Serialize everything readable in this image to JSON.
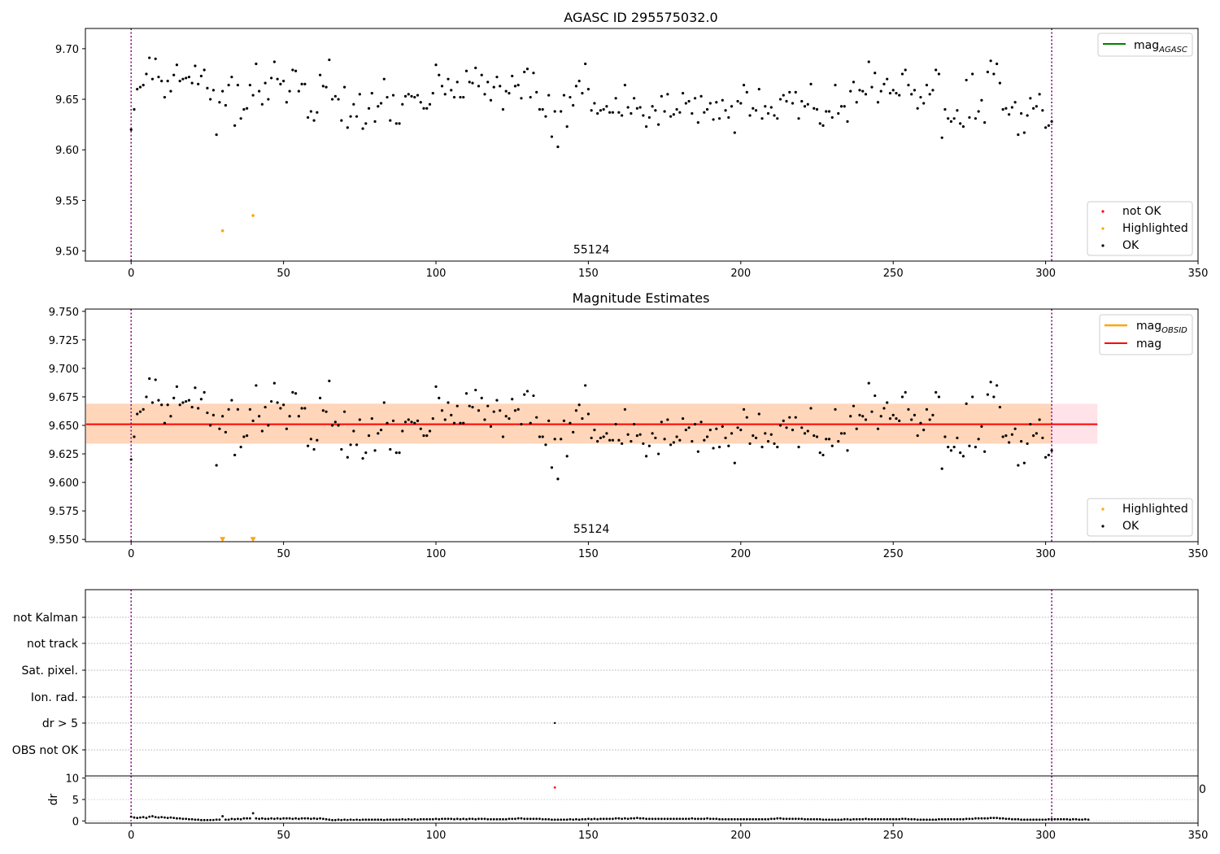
{
  "chart_data": [
    {
      "type": "scatter",
      "title": "AGASC ID 295575032.0",
      "xlim": [
        -15,
        350
      ],
      "ylim": [
        9.49,
        9.72
      ],
      "xticks": [
        0,
        50,
        100,
        150,
        200,
        250,
        300,
        350
      ],
      "yticks": [
        9.5,
        9.55,
        9.6,
        9.65,
        9.7
      ],
      "vlines": [
        0,
        302
      ],
      "annotation": {
        "text": "55124",
        "x": 151,
        "y": 9.5
      },
      "legend_lines": [
        {
          "main": "mag",
          "sub": "AGASC",
          "color": "#008000"
        }
      ],
      "legend_points": [
        {
          "label": "not OK",
          "color": "#ff0000"
        },
        {
          "label": "Highlighted",
          "color": "#ffa500"
        },
        {
          "label": "OK",
          "color": "#000000"
        }
      ],
      "series": [
        {
          "name": "Highlighted",
          "color": "#ffa500",
          "x": [
            30,
            40
          ],
          "y": [
            9.52,
            9.535
          ]
        },
        {
          "name": "OK",
          "color": "#000000",
          "source": "points"
        }
      ]
    },
    {
      "type": "scatter",
      "title": "Magnitude Estimates",
      "xlim": [
        -15,
        350
      ],
      "ylim": [
        9.548,
        9.752
      ],
      "xticks": [
        0,
        50,
        100,
        150,
        200,
        250,
        300,
        350
      ],
      "yticks": [
        9.55,
        9.575,
        9.6,
        9.625,
        9.65,
        9.675,
        9.7,
        9.725,
        9.75
      ],
      "vlines": [
        0,
        302
      ],
      "band": {
        "x0": -15,
        "x1": 317,
        "y0": 9.634,
        "y1": 9.669
      },
      "mag_obsid_band": {
        "x0": -15,
        "x1": 302,
        "y0": 9.634,
        "y1": 9.669
      },
      "mag_line": 9.651,
      "annotation": {
        "text": "55124",
        "x": 151,
        "y": 9.555
      },
      "legend_lines": [
        {
          "main": "mag",
          "sub": "OBSID",
          "color": "#ffa500"
        },
        {
          "main": "mag",
          "sub": "",
          "color": "#ff0000"
        }
      ],
      "legend_points": [
        {
          "label": "Highlighted",
          "color": "#ffa500"
        },
        {
          "label": "OK",
          "color": "#000000"
        }
      ],
      "series": [
        {
          "name": "Highlighted",
          "color": "#ffa500",
          "marker": "triangle-down",
          "x": [
            30,
            40
          ],
          "y": [
            9.55,
            9.55
          ]
        },
        {
          "name": "OK",
          "color": "#000000",
          "source": "points"
        }
      ]
    },
    {
      "type": "scatter",
      "xlim": [
        -15,
        350
      ],
      "categories": [
        "not Kalman",
        "not track",
        "Sat. pixel.",
        "Ion. rad.",
        "dr > 5",
        "OBS not OK"
      ],
      "vlines": [
        0,
        302
      ],
      "flag_points": [
        {
          "x": 139,
          "category": "dr > 5"
        }
      ]
    },
    {
      "type": "scatter",
      "ylabel": "dr",
      "xlim": [
        -15,
        350
      ],
      "ylim": [
        -0.5,
        10.5
      ],
      "yticks": [
        0,
        5,
        10
      ],
      "xticks": [
        0,
        50,
        100,
        150,
        200,
        250,
        300,
        350
      ],
      "right_label": "0",
      "vlines": [
        0,
        302
      ],
      "outlier": {
        "x": 139,
        "y": 7.8,
        "color": "#ff0000"
      },
      "dr_values": [
        1.0,
        0.8,
        0.7,
        0.8,
        0.9,
        0.7,
        1.0,
        1.1,
        0.9,
        0.8,
        0.9,
        0.8,
        0.7,
        0.8,
        0.7,
        0.6,
        0.6,
        0.5,
        0.5,
        0.4,
        0.4,
        0.3,
        0.3,
        0.2,
        0.2,
        0.2,
        0.2,
        0.2,
        0.3,
        0.3,
        1.1,
        0.3,
        0.3,
        0.5,
        0.4,
        0.5,
        0.4,
        0.6,
        0.6,
        0.6,
        1.8,
        0.6,
        0.5,
        0.6,
        0.5,
        0.5,
        0.6,
        0.5,
        0.6,
        0.5,
        0.6,
        0.6,
        0.6,
        0.5,
        0.6,
        0.5,
        0.6,
        0.6,
        0.6,
        0.5,
        0.6,
        0.5,
        0.6,
        0.5,
        0.4,
        0.3,
        0.2,
        0.2,
        0.3,
        0.2,
        0.3,
        0.2,
        0.3,
        0.2,
        0.3,
        0.2,
        0.3,
        0.3,
        0.3,
        0.3,
        0.3,
        0.3,
        0.3,
        0.2,
        0.3,
        0.3,
        0.3,
        0.3,
        0.3,
        0.4,
        0.3,
        0.4,
        0.3,
        0.4,
        0.3,
        0.4,
        0.4,
        0.4,
        0.4,
        0.4,
        0.5,
        0.4,
        0.5,
        0.5,
        0.5,
        0.5,
        0.4,
        0.5,
        0.4,
        0.5,
        0.4,
        0.5,
        0.5,
        0.4,
        0.5,
        0.5,
        0.5,
        0.4,
        0.4,
        0.4,
        0.4,
        0.4,
        0.4,
        0.4,
        0.5,
        0.5,
        0.5,
        0.6,
        0.6,
        0.5,
        0.5,
        0.5,
        0.5,
        0.5,
        0.5,
        0.4,
        0.4,
        0.4,
        0.3,
        0.3,
        0.3,
        0.3,
        0.3,
        0.3,
        0.4,
        0.3,
        0.4,
        0.3,
        0.4,
        0.4,
        0.5,
        0.4,
        0.5,
        0.4,
        0.5,
        0.5,
        0.5,
        0.5,
        0.5,
        0.6,
        0.6,
        0.5,
        0.6,
        0.5,
        0.6,
        0.6,
        0.7,
        0.6,
        0.6,
        0.5,
        0.5,
        0.5,
        0.5,
        0.5,
        0.5,
        0.5,
        0.5,
        0.5,
        0.5,
        0.5,
        0.5,
        0.5,
        0.5,
        0.5,
        0.6,
        0.5,
        0.5,
        0.5,
        0.5,
        0.6,
        0.5,
        0.5,
        0.5,
        0.4,
        0.4,
        0.4,
        0.4,
        0.4,
        0.4,
        0.4,
        0.4,
        0.4,
        0.4,
        0.4,
        0.4,
        0.4,
        0.4,
        0.4,
        0.4,
        0.4,
        0.5,
        0.5,
        0.6,
        0.6,
        0.5,
        0.5,
        0.5,
        0.5,
        0.5,
        0.5,
        0.5,
        0.4,
        0.4,
        0.4,
        0.4,
        0.4,
        0.4,
        0.3,
        0.3,
        0.3,
        0.3,
        0.3,
        0.3,
        0.3,
        0.4,
        0.4,
        0.3,
        0.4,
        0.4,
        0.4,
        0.4,
        0.5,
        0.4,
        0.4,
        0.4,
        0.4,
        0.4,
        0.4,
        0.4,
        0.4,
        0.4,
        0.4,
        0.4,
        0.5,
        0.5,
        0.4,
        0.4,
        0.4,
        0.3,
        0.3,
        0.3,
        0.3,
        0.3,
        0.3,
        0.3,
        0.4,
        0.4,
        0.4,
        0.4,
        0.4,
        0.4,
        0.4,
        0.4,
        0.4,
        0.5,
        0.5,
        0.5,
        0.6,
        0.6,
        0.6,
        0.6,
        0.6,
        0.7,
        0.7,
        0.7,
        0.6,
        0.6,
        0.5,
        0.5,
        0.4,
        0.4,
        0.4,
        0.3,
        0.3,
        0.3,
        0.3,
        0.3,
        0.3,
        0.3,
        0.3,
        0.3,
        0.4,
        0.4,
        0.4,
        0.4,
        0.4,
        0.4,
        0.4,
        0.3,
        0.4,
        0.4,
        0.3,
        0.3,
        0.4,
        0.3
      ],
      "points": [
        9.62,
        9.64,
        9.66,
        9.662,
        9.664,
        9.675,
        9.691,
        9.67,
        9.69,
        9.672,
        9.668,
        9.652,
        9.668,
        9.658,
        9.674,
        9.684,
        9.668,
        9.67,
        9.671,
        9.672,
        9.666,
        9.683,
        9.665,
        9.673,
        9.679,
        9.661,
        9.65,
        9.659,
        9.615,
        9.647,
        9.658,
        9.644,
        9.664,
        9.672,
        9.624,
        9.664,
        9.631,
        9.64,
        9.641,
        9.664,
        9.654,
        9.685,
        9.658,
        9.645,
        9.666,
        9.65,
        9.671,
        9.687,
        9.67,
        9.665,
        9.668,
        9.647,
        9.658,
        9.679,
        9.678,
        9.658,
        9.665,
        9.665,
        9.632,
        9.638,
        9.629,
        9.637,
        9.674,
        9.663,
        9.662,
        9.689,
        9.65,
        9.653,
        9.65,
        9.629,
        9.662,
        9.622,
        9.633,
        9.645,
        9.633,
        9.655,
        9.621,
        9.626,
        9.641,
        9.656,
        9.628,
        9.643,
        9.646,
        9.67,
        9.652,
        9.629,
        9.654,
        9.626,
        9.626,
        9.645,
        9.653,
        9.655,
        9.653,
        9.652,
        9.654,
        9.647,
        9.641,
        9.641,
        9.645,
        9.656,
        9.684,
        9.674,
        9.663,
        9.655,
        9.67,
        9.659,
        9.652,
        9.667,
        9.652,
        9.652,
        9.678,
        9.667,
        9.666,
        9.681,
        9.663,
        9.674,
        9.655,
        9.667,
        9.649,
        9.662,
        9.672,
        9.663,
        9.64,
        9.658,
        9.656,
        9.673,
        9.663,
        9.664,
        9.651,
        9.677,
        9.68,
        9.652,
        9.676,
        9.657,
        9.64,
        9.64,
        9.633,
        9.654,
        9.613,
        9.638,
        9.603,
        9.638,
        9.654,
        9.623,
        9.652,
        9.644,
        9.663,
        9.668,
        9.656,
        9.685,
        9.66,
        9.639,
        9.646,
        9.636,
        9.639,
        9.64,
        9.643,
        9.637,
        9.637,
        9.651,
        9.637,
        9.634,
        9.664,
        9.642,
        9.636,
        9.651,
        9.641,
        9.642,
        9.634,
        9.623,
        9.632,
        9.643,
        9.639,
        9.625,
        9.653,
        9.638,
        9.655,
        9.633,
        9.635,
        9.64,
        9.637,
        9.656,
        9.646,
        9.648,
        9.636,
        9.651,
        9.627,
        9.653,
        9.637,
        9.64,
        9.646,
        9.63,
        9.647,
        9.631,
        9.649,
        9.639,
        9.632,
        9.643,
        9.617,
        9.648,
        9.646,
        9.664,
        9.657,
        9.634,
        9.641,
        9.639,
        9.66,
        9.631,
        9.643,
        9.636,
        9.642,
        9.634,
        9.631,
        9.65,
        9.654,
        9.648,
        9.657,
        9.646,
        9.657,
        9.631,
        9.648,
        9.643,
        9.645,
        9.665,
        9.641,
        9.64,
        9.626,
        9.624,
        9.638,
        9.638,
        9.632,
        9.664,
        9.636,
        9.643,
        9.643,
        9.628,
        9.658,
        9.667,
        9.647,
        9.659,
        9.658,
        9.655,
        9.687,
        9.662,
        9.676,
        9.647,
        9.658,
        9.665,
        9.67,
        9.656,
        9.659,
        9.656,
        9.654,
        9.675,
        9.679,
        9.664,
        9.655,
        9.659,
        9.641,
        9.652,
        9.646,
        9.664,
        9.655,
        9.659,
        9.679,
        9.675,
        9.612,
        9.64,
        9.631,
        9.628,
        9.631,
        9.639,
        9.626,
        9.623,
        9.669,
        9.632,
        9.675,
        9.631,
        9.638,
        9.649,
        9.627,
        9.677,
        9.688,
        9.675,
        9.685,
        9.666,
        9.64,
        9.641,
        9.635,
        9.642,
        9.647,
        9.615,
        9.636,
        9.617,
        9.634,
        9.651,
        9.641,
        9.643,
        9.655,
        9.639,
        9.622,
        9.624,
        9.628
      ]
    }
  ]
}
